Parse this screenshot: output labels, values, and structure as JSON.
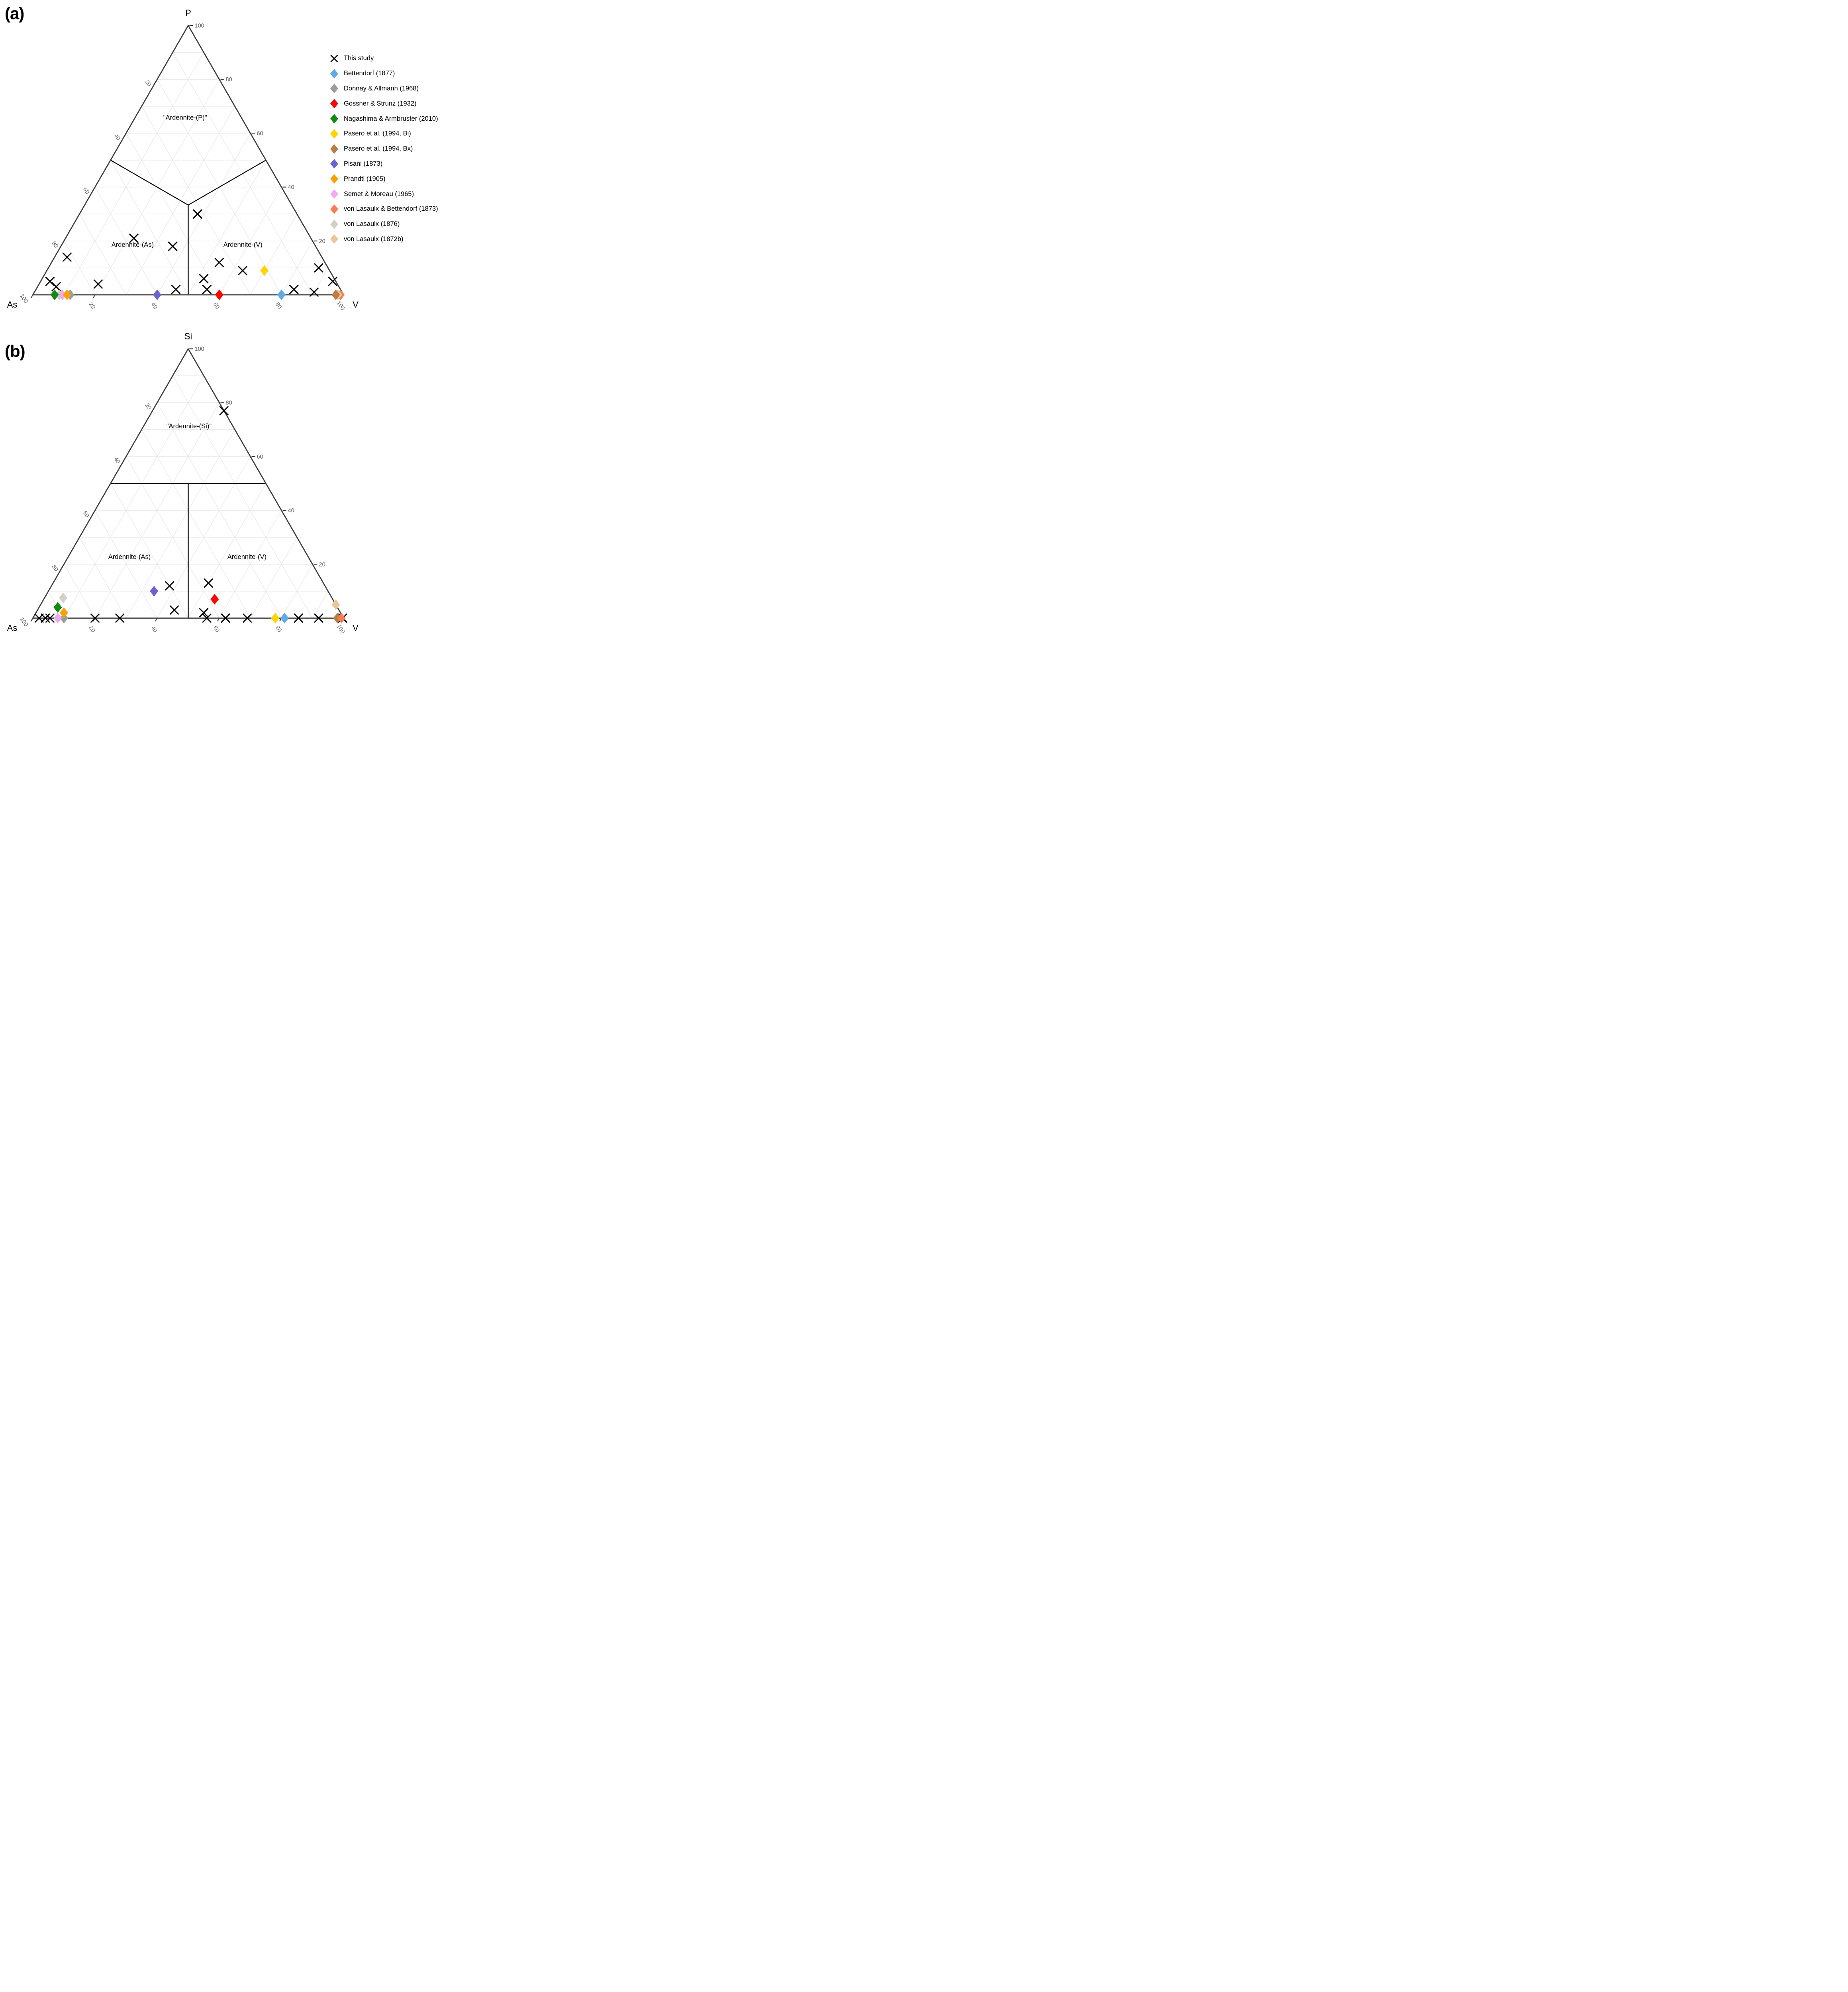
{
  "figure": {
    "panel_a_label": "(a)",
    "panel_b_label": "(b)"
  },
  "chart_data": {
    "type": "scatter",
    "subtype": "ternary",
    "grid": "on",
    "grid_interval": 10,
    "tick_values": [
      20,
      40,
      60,
      80,
      100
    ],
    "legend_position": "upper right",
    "axis_color": "#3d3d3d",
    "grid_color": "#eaeaea",
    "boundary_color": "#000000",
    "tick_label_color": "#595959",
    "panels": [
      {
        "panel": "(a)",
        "apex_label": "P",
        "left_label": "As",
        "right_label": "V",
        "region_labels": [
          {
            "text": "\"Ardennite-(P)\"",
            "pos": [
              18.5,
              65,
              16.5
            ]
          },
          {
            "text": "Ardennite-(As)",
            "pos": [
              59,
              17.8,
              23.2
            ]
          },
          {
            "text": "Ardennite-(V)",
            "pos": [
              23.5,
              17.8,
              58.7
            ]
          }
        ],
        "boundaries": [
          [
            [
              50,
              50,
              0
            ],
            [
              33.33,
              33.33,
              33.33
            ]
          ],
          [
            [
              0,
              50,
              50
            ],
            [
              33.33,
              33.33,
              33.33
            ]
          ],
          [
            [
              33.33,
              33.33,
              33.33
            ],
            [
              50,
              0,
              50
            ]
          ]
        ],
        "points_key": "a",
        "diamond_draw_order": [
          11,
          2,
          9,
          8,
          4,
          7,
          3,
          1,
          5,
          10,
          12,
          6
        ]
      },
      {
        "panel": "(b)",
        "apex_label": "Si",
        "left_label": "As",
        "right_label": "V",
        "region_labels": [
          {
            "text": "\"Ardennite-(Si)\"",
            "pos": [
              14.5,
              70.5,
              15
            ]
          },
          {
            "text": "Ardennite-(As)",
            "pos": [
              57.9,
              22,
              20.1
            ]
          },
          {
            "text": "Ardennite-(V)",
            "pos": [
              20.1,
              22,
              57.9
            ]
          }
        ],
        "boundaries": [
          [
            [
              50,
              50,
              0
            ],
            [
              0,
              50,
              50
            ]
          ],
          [
            [
              25,
              50,
              25
            ],
            [
              50,
              0,
              50
            ]
          ]
        ],
        "points_key": "b",
        "diamond_draw_order": [
          2,
          9,
          8,
          4,
          11,
          7,
          3,
          5,
          1,
          6,
          10,
          12
        ]
      }
    ],
    "series": [
      {
        "label": "This study",
        "marker": "x",
        "color": "#000000",
        "a": [
          [
            34,
            12,
            54
          ],
          [
            32,
            30,
            38
          ],
          [
            57,
            21,
            22
          ],
          [
            46,
            18,
            36
          ],
          [
            82,
            14,
            4
          ],
          [
            28,
            9,
            63
          ],
          [
            3,
            10,
            87
          ],
          [
            42,
            6,
            52
          ],
          [
            1,
            5,
            94
          ],
          [
            92,
            5,
            3
          ],
          [
            91,
            3,
            6
          ],
          [
            77,
            4,
            19
          ],
          [
            53,
            2,
            45
          ],
          [
            43,
            2,
            55
          ],
          [
            15,
            2,
            83
          ],
          [
            9,
            1,
            90
          ]
        ],
        "b": [
          [
            0,
            77,
            23
          ],
          [
            50,
            12,
            38
          ],
          [
            37,
            13,
            50
          ],
          [
            53,
            3,
            44
          ],
          [
            44,
            2,
            54
          ],
          [
            98,
            0,
            2
          ],
          [
            96,
            0,
            4
          ],
          [
            94.5,
            0,
            5.5
          ],
          [
            80,
            0,
            20
          ],
          [
            72,
            0,
            28
          ],
          [
            44,
            0,
            56
          ],
          [
            38,
            0,
            62
          ],
          [
            31,
            0,
            69
          ],
          [
            14.5,
            0,
            85.5
          ],
          [
            8,
            0,
            92
          ],
          [
            0.3,
            0,
            99.7
          ]
        ]
      },
      {
        "label": "Bettendorf (1877)",
        "marker": "diamond",
        "color": "#5FABEA",
        "a": [
          [
            20,
            0,
            80
          ]
        ],
        "b": [
          [
            19,
            0,
            81
          ]
        ]
      },
      {
        "label": "Donnay & Allmann (1968)",
        "marker": "diamond",
        "color": "#9C9C9C",
        "a": [
          [
            88,
            0,
            12
          ]
        ],
        "b": [
          [
            90,
            0,
            10
          ]
        ]
      },
      {
        "label": "Gossner & Strunz (1932)",
        "marker": "diamond",
        "color": "#FB0604",
        "a": [
          [
            40,
            0,
            60
          ]
        ],
        "b": [
          [
            38,
            7,
            55
          ]
        ]
      },
      {
        "label": "Nagashima & Armbruster (2010)",
        "marker": "diamond",
        "color": "#0F8A12",
        "a": [
          [
            93,
            0,
            7
          ]
        ],
        "b": [
          [
            90,
            4,
            6
          ]
        ]
      },
      {
        "label": "Pasero et al. (1994, Bi)",
        "marker": "diamond",
        "color": "#FED503",
        "a": [
          [
            21,
            9,
            70
          ]
        ],
        "b": [
          [
            22,
            0,
            78
          ]
        ]
      },
      {
        "label": "Pasero et al. (1994, Bx)",
        "marker": "diamond",
        "color": "#B87E46",
        "a": [
          [
            2.5,
            0,
            97.5
          ]
        ],
        "b": [
          [
            2,
            0,
            98
          ]
        ]
      },
      {
        "label": "Pisani (1873)",
        "marker": "diamond",
        "color": "#6B61D0",
        "a": [
          [
            60,
            0,
            40
          ]
        ],
        "b": [
          [
            56,
            10,
            34
          ]
        ]
      },
      {
        "label": "Prandtl (1905)",
        "marker": "diamond",
        "color": "#F9A206",
        "a": [
          [
            89,
            0,
            11
          ]
        ],
        "b": [
          [
            89,
            2,
            9
          ]
        ]
      },
      {
        "label": "Semet & Moreau (1965)",
        "marker": "diamond",
        "color": "#F0ABEF",
        "a": [
          [
            90.5,
            0,
            9.5
          ]
        ],
        "b": [
          [
            92,
            0,
            8
          ]
        ]
      },
      {
        "label": "von Lasaulx & Bettendorf (1873)",
        "marker": "diamond",
        "color": "#F97D54",
        "a": [
          [
            1,
            0,
            99
          ]
        ],
        "b": [
          [
            0.7,
            0,
            99.3
          ]
        ]
      },
      {
        "label": "von Lasaulx (1876)",
        "marker": "diamond",
        "color": "#D2D1C4",
        "a": [
          [
            91.5,
            0,
            8.5
          ]
        ],
        "b": [
          [
            86.5,
            7.5,
            6
          ]
        ]
      },
      {
        "label": "von Lasaulx (1872b)",
        "marker": "diamond",
        "color": "#EBC699",
        "a": [
          [
            1.8,
            0,
            98.2
          ]
        ],
        "b": [
          [
            0,
            5,
            95
          ]
        ]
      }
    ]
  },
  "layout_note": "ternary axes: left edge = As (100 at bottom-left corner), right edge = apex component (100 at apex), bottom edge = V (100 at bottom-right corner)"
}
